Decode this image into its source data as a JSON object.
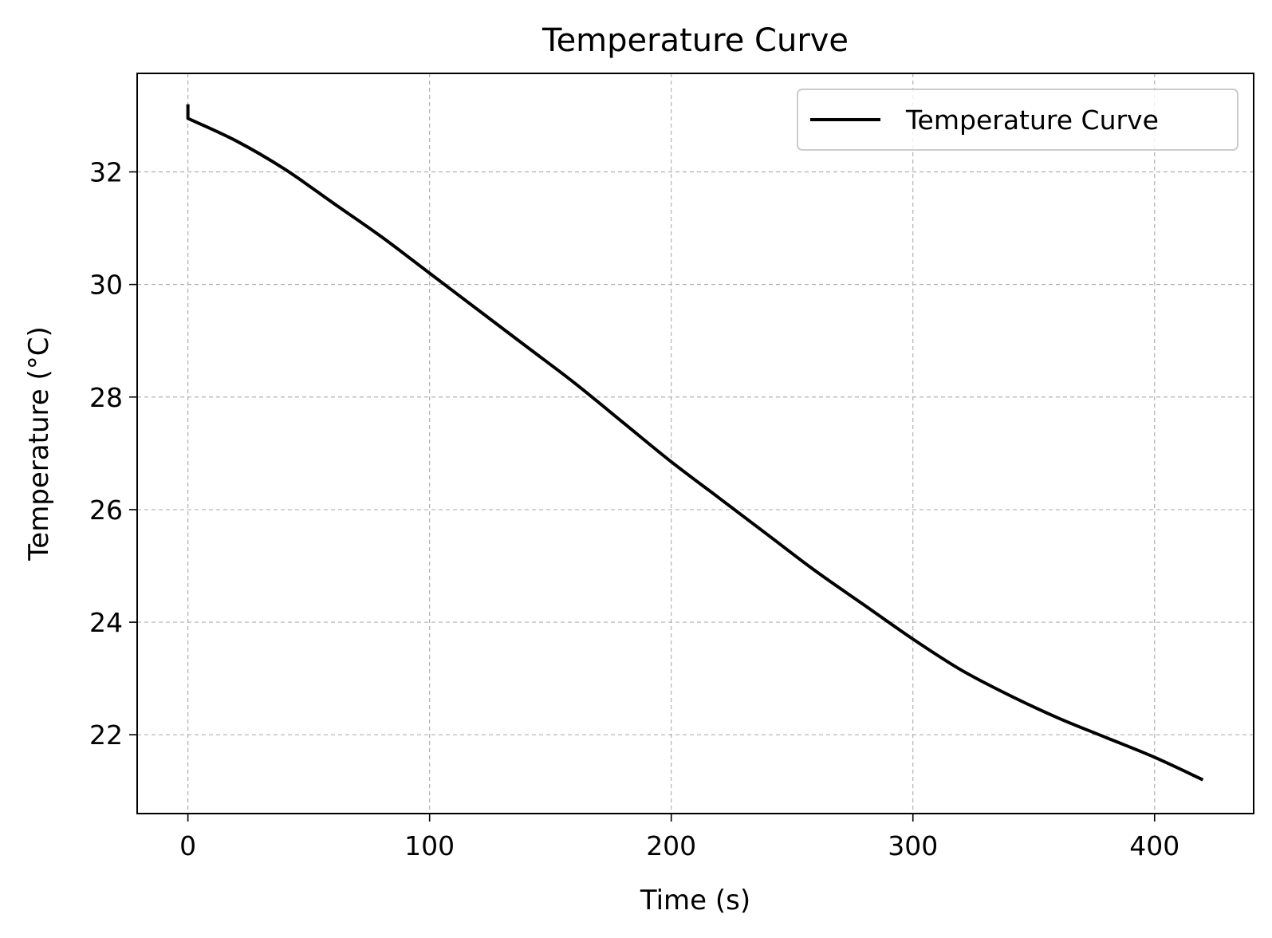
{
  "chart_data": {
    "type": "line",
    "title": "Temperature Curve",
    "xlabel": "Time (s)",
    "ylabel": "Temperature (°C)",
    "xlim": [
      -21,
      441
    ],
    "ylim": [
      20.6,
      33.75
    ],
    "xticks": [
      0,
      100,
      200,
      300,
      400
    ],
    "xtick_labels": [
      "0",
      "100",
      "200",
      "300",
      "400"
    ],
    "yticks": [
      22,
      24,
      26,
      28,
      30,
      32
    ],
    "ytick_labels": [
      "22",
      "24",
      "26",
      "28",
      "30",
      "32"
    ],
    "grid": true,
    "legend": {
      "position": "top-right",
      "entries": [
        "Temperature Curve"
      ]
    },
    "series": [
      {
        "name": "Temperature Curve",
        "color": "#000000",
        "x": [
          0,
          0,
          20,
          40,
          60,
          80,
          100,
          120,
          140,
          160,
          180,
          200,
          220,
          240,
          260,
          280,
          300,
          320,
          340,
          360,
          380,
          400,
          420
        ],
        "y": [
          33.2,
          32.95,
          32.55,
          32.05,
          31.45,
          30.85,
          30.2,
          29.55,
          28.9,
          28.25,
          27.55,
          26.85,
          26.2,
          25.55,
          24.9,
          24.3,
          23.7,
          23.15,
          22.7,
          22.3,
          21.95,
          21.6,
          21.2
        ]
      }
    ]
  }
}
